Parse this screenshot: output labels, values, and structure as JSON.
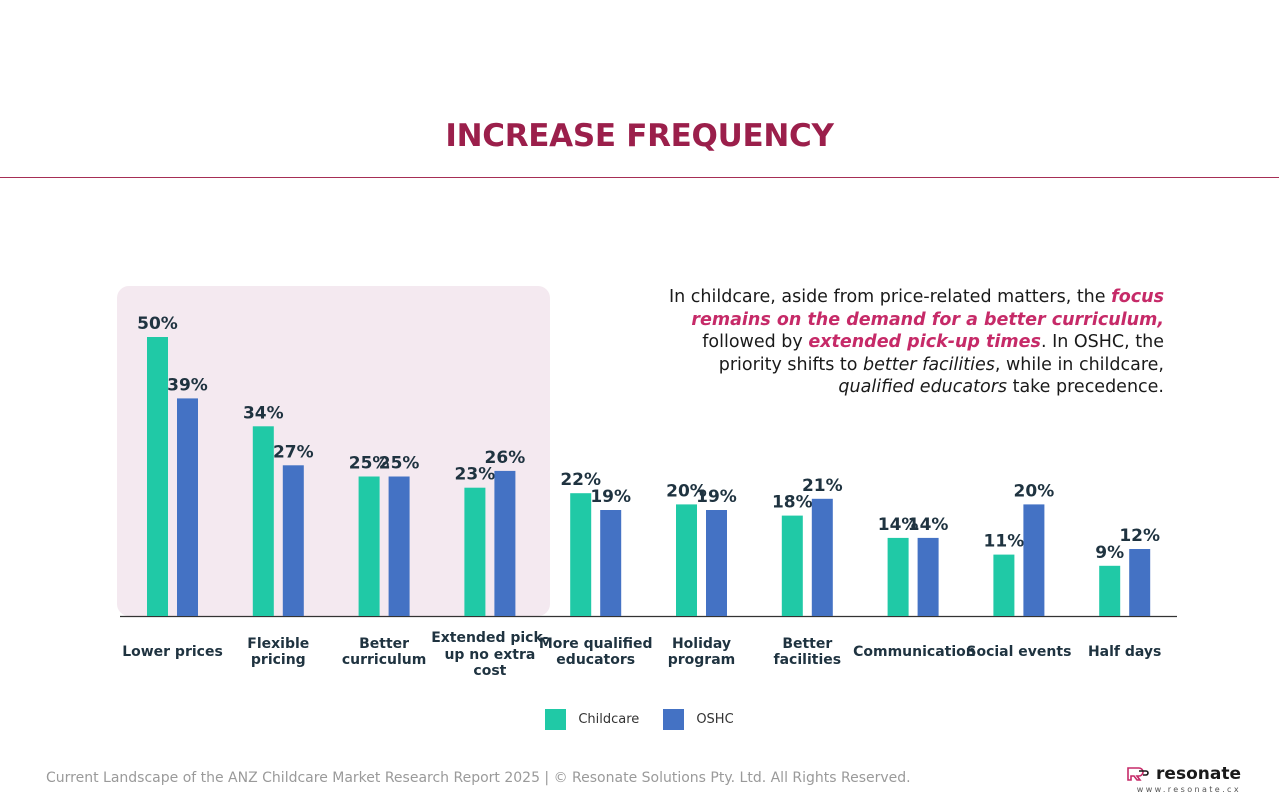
{
  "title": "INCREASE FREQUENCY",
  "insight": {
    "p1": "In childcare, aside from price-related matters, the ",
    "p2": "focus remains on the demand for a better curriculum,",
    "p3": " followed by ",
    "p4": "extended pick-up times",
    "p5": ". In OSHC, the priority shifts to ",
    "p6": "better facilities",
    "p7": ", while in childcare, ",
    "p8": "qualified educators",
    "p9": " take precedence."
  },
  "colors": {
    "childcare": "#20c9a6",
    "oshc": "#4472c4",
    "title": "#9b1f4b",
    "accent": "#c62a68",
    "highlight": "#f4e9f0"
  },
  "chart_data": {
    "type": "bar",
    "categories": [
      "Lower prices",
      "Flexible pricing",
      "Better curriculum",
      "Extended pick-up no extra cost",
      "More qualified educators",
      "Holiday program",
      "Better facilities",
      "Communication",
      "Social events",
      "Half days"
    ],
    "series": [
      {
        "name": "Childcare",
        "values": [
          50,
          34,
          25,
          23,
          22,
          20,
          18,
          14,
          11,
          9
        ]
      },
      {
        "name": "OSHC",
        "values": [
          39,
          27,
          25,
          26,
          19,
          19,
          21,
          14,
          20,
          12
        ]
      }
    ],
    "value_suffix": "%",
    "ylim": [
      0,
      60
    ],
    "grid": false,
    "legend": "bottom-center",
    "highlighted_categories": [
      "Lower prices",
      "Flexible pricing",
      "Better curriculum",
      "Extended pick-up no extra cost"
    ]
  },
  "legend": {
    "childcare": "Childcare",
    "oshc": "OSHC"
  },
  "footer": "Current Landscape of the ANZ Childcare Market Research Report 2025 | © Resonate Solutions Pty. Ltd. All Rights Reserved.",
  "logo": {
    "name": "resonate",
    "url": "www.resonate.cx",
    "icon": "resonate-logo-icon"
  }
}
